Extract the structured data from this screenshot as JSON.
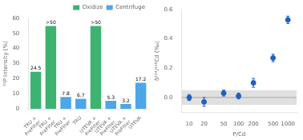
{
  "chart_data": [
    {
      "type": "bar",
      "categories": [
        "TRU +\nPreFilter",
        "TRU +\nPreFilter",
        "TRU +\nPreFilter",
        "TRU",
        "UTEVA +\nPreFilter",
        "UTEVA +\nPreFilter",
        "UTEVA +\nPreFilter",
        "UTEVA"
      ],
      "series": [
        {
          "name": "Oxidize",
          "color": "#3cb371",
          "values": [
            24.5,
            55,
            null,
            null,
            55,
            null,
            null,
            null
          ],
          "value_labels": [
            "24.5",
            ">50",
            null,
            null,
            ">50",
            null,
            null,
            null
          ]
        },
        {
          "name": "Centrifuge",
          "color": "#4da6e8",
          "values": [
            null,
            null,
            7.8,
            6.7,
            null,
            5.3,
            3.2,
            17.2
          ],
          "value_labels": [
            null,
            null,
            "7.8",
            "6.7",
            null,
            "5.3",
            "3.2",
            "17.2"
          ]
        }
      ],
      "ylabel": "³¹P Intensity (%)",
      "ylim": [
        0,
        60
      ],
      "yticks": [
        0,
        10,
        20,
        30,
        40,
        50,
        60
      ],
      "legend": "upper right",
      "data_labels": true,
      "grid": false
    },
    {
      "type": "scatter",
      "x": [
        10,
        20,
        50,
        100,
        200,
        500,
        1000
      ],
      "values": [
        0.0,
        -0.03,
        0.03,
        0.01,
        0.1,
        0.27,
        0.53
      ],
      "yerr": [
        0.02,
        0.03,
        0.02,
        0.02,
        0.03,
        0.025,
        0.025
      ],
      "color": "#2060c0",
      "marker": "circle",
      "log": "x",
      "xlabel": "P/Cd",
      "ylabel": "δ¹¹⁴/¹¹⁰Cd (‰)",
      "xlim": [
        7,
        1500
      ],
      "xticks": [
        10,
        20,
        50,
        100,
        200,
        500,
        1000
      ],
      "ylim": [
        -0.1,
        0.6
      ],
      "yticks": [
        {
          "value": 0.0,
          "label": "0.0"
        },
        {
          "value": 0.2,
          "label": "0.2"
        },
        {
          "value": 0.4,
          "label": "0.4"
        },
        {
          "value": 0.6,
          "label": "0.6"
        }
      ],
      "band": {
        "ymin": -0.05,
        "ymax": 0.05,
        "color": "#cccccc"
      },
      "hline": 0,
      "grid": false
    }
  ]
}
